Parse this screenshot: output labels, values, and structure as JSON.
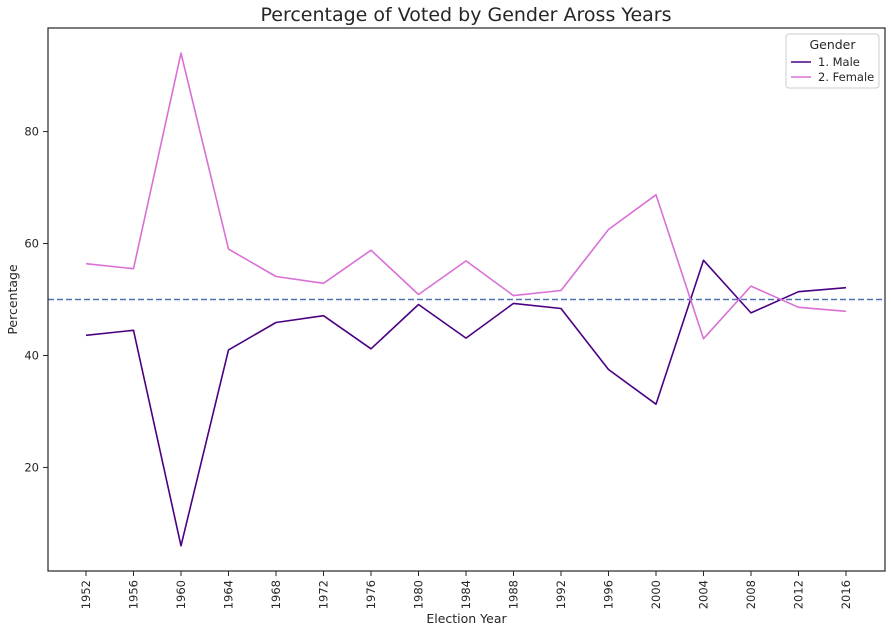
{
  "chart_data": {
    "type": "line",
    "title": "Percentage of Voted by Gender Aross Years",
    "xlabel": "Election Year",
    "ylabel": "Percentage",
    "x": [
      "1952",
      "1956",
      "1960",
      "1964",
      "1968",
      "1972",
      "1976",
      "1980",
      "1984",
      "1988",
      "1992",
      "1996",
      "2000",
      "2004",
      "2008",
      "2012",
      "2016"
    ],
    "yticks": [
      20,
      40,
      60,
      80
    ],
    "ylim": [
      1.5,
      98.5
    ],
    "reference_line": {
      "y": 50,
      "style": "dashed",
      "color": "#4c72b0"
    },
    "legend": {
      "title": "Gender",
      "placement": "top-right"
    },
    "series": [
      {
        "name": "1. Male",
        "color": "#4b0082",
        "values": [
          43.6,
          44.5,
          6.0,
          41.0,
          45.9,
          47.1,
          41.2,
          49.1,
          43.1,
          49.3,
          48.4,
          37.5,
          31.3,
          57.0,
          47.6,
          51.4,
          52.1
        ]
      },
      {
        "name": "2. Female",
        "color": "#da70d6",
        "values": [
          56.4,
          55.5,
          94.0,
          59.0,
          54.1,
          52.9,
          58.8,
          50.9,
          56.9,
          50.7,
          51.6,
          62.5,
          68.7,
          43.0,
          52.4,
          48.6,
          47.9
        ]
      }
    ]
  }
}
